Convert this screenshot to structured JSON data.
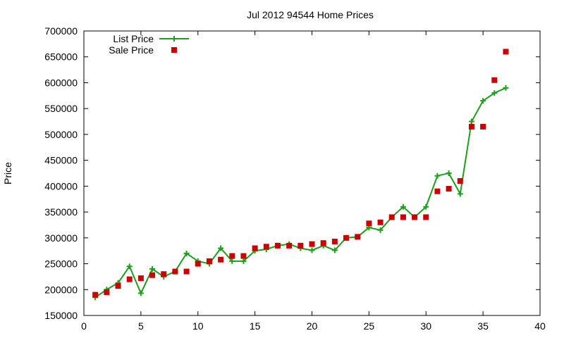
{
  "chart_data": {
    "type": "line",
    "title": "Jul 2012 94544 Home Prices",
    "xlabel": "",
    "ylabel": "Price",
    "xlim": [
      0,
      40
    ],
    "ylim": [
      150000,
      700000
    ],
    "xticks": [
      0,
      5,
      10,
      15,
      20,
      25,
      30,
      35,
      40
    ],
    "yticks": [
      150000,
      200000,
      250000,
      300000,
      350000,
      400000,
      450000,
      500000,
      550000,
      600000,
      650000,
      700000
    ],
    "grid": false,
    "legend_position": "top-left",
    "series": [
      {
        "name": "List Price",
        "style": "linespoints",
        "color": "#1aa01a",
        "marker": "plus",
        "x": [
          1,
          2,
          3,
          4,
          5,
          6,
          7,
          8,
          9,
          10,
          11,
          12,
          13,
          14,
          15,
          16,
          17,
          18,
          19,
          20,
          21,
          22,
          23,
          24,
          25,
          26,
          27,
          28,
          29,
          30,
          31,
          32,
          33,
          34,
          35,
          36,
          37
        ],
        "y": [
          185000,
          200000,
          213000,
          245000,
          193000,
          240000,
          225000,
          235000,
          270000,
          255000,
          250000,
          280000,
          255000,
          255000,
          275000,
          278000,
          285000,
          288000,
          280000,
          276000,
          285000,
          276000,
          300000,
          302000,
          320000,
          315000,
          340000,
          360000,
          340000,
          360000,
          420000,
          425000,
          385000,
          525000,
          565000,
          580000,
          590000
        ]
      },
      {
        "name": "Sale Price",
        "style": "points",
        "color": "#cc0000",
        "marker": "square",
        "x": [
          1,
          2,
          3,
          4,
          5,
          6,
          7,
          8,
          9,
          10,
          11,
          12,
          13,
          14,
          15,
          16,
          17,
          18,
          19,
          20,
          21,
          22,
          23,
          24,
          25,
          26,
          27,
          28,
          29,
          30,
          31,
          32,
          33,
          34,
          35,
          36,
          37
        ],
        "y": [
          190000,
          195000,
          207000,
          220000,
          222000,
          228000,
          230000,
          235000,
          235000,
          250000,
          255000,
          258000,
          265000,
          265000,
          280000,
          283000,
          285000,
          285000,
          285000,
          288000,
          290000,
          293000,
          300000,
          302000,
          328000,
          330000,
          340000,
          340000,
          340000,
          340000,
          390000,
          395000,
          410000,
          515000,
          515000,
          605000,
          660000
        ]
      }
    ]
  }
}
